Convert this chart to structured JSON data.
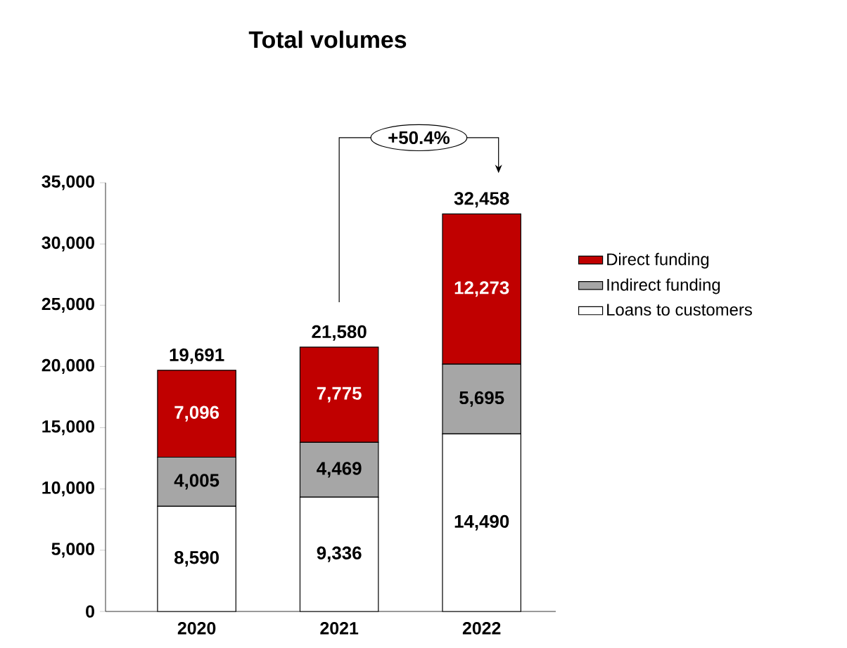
{
  "chart_data": {
    "type": "bar",
    "title": "Total volumes",
    "stacked": true,
    "categories": [
      "2020",
      "2021",
      "2022"
    ],
    "series": [
      {
        "name": "Loans to customers",
        "color": "#ffffff",
        "values": [
          8590,
          9336,
          14490
        ],
        "value_labels": [
          "8,590",
          "9,336",
          "14,490"
        ]
      },
      {
        "name": "Indirect funding",
        "color": "#a6a6a6",
        "values": [
          4005,
          4469,
          5695
        ],
        "value_labels": [
          "4,005",
          "4,469",
          "5,695"
        ]
      },
      {
        "name": "Direct funding",
        "color": "#c00000",
        "values": [
          7096,
          7775,
          12273
        ],
        "value_labels": [
          "7,096",
          "7,775",
          "12,273"
        ]
      }
    ],
    "totals": [
      "19,691",
      "21,580",
      "32,458"
    ],
    "annotations": [
      "+50.4%"
    ],
    "ylim": [
      0,
      35000
    ],
    "yticks": [
      {
        "value": 0,
        "label": "0"
      },
      {
        "value": 5000,
        "label": "5,000"
      },
      {
        "value": 10000,
        "label": "10,000"
      },
      {
        "value": 15000,
        "label": "15,000"
      },
      {
        "value": 20000,
        "label": "20,000"
      },
      {
        "value": 25000,
        "label": "25,000"
      },
      {
        "value": 30000,
        "label": "30,000"
      },
      {
        "value": 35000,
        "label": "35,000"
      }
    ],
    "legend": "right"
  }
}
